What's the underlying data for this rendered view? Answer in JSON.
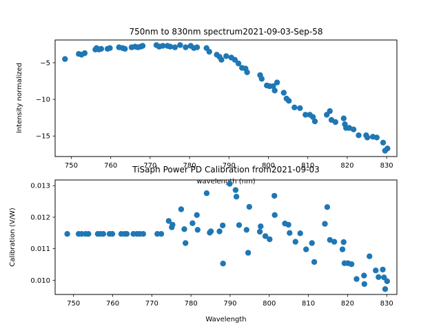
{
  "chart_data": [
    {
      "type": "scatter",
      "title": "750nm to 830nm spectrum2021-09-03-Sep-58",
      "xlabel": "wavelength (nm)",
      "ylabel": "Intensity normalized",
      "xlim": [
        745.9,
        832.6
      ],
      "ylim": [
        -17.8,
        -1.9
      ],
      "xticks": [
        750,
        760,
        770,
        780,
        790,
        800,
        810,
        820,
        830
      ],
      "yticks": [
        -5,
        -10,
        -15
      ],
      "grid": false,
      "marker_color": "#1f77b4",
      "points": [
        [
          748.4,
          -4.5
        ],
        [
          751.9,
          -3.8
        ],
        [
          752.6,
          -3.9
        ],
        [
          753.4,
          -3.7
        ],
        [
          756.1,
          -3.2
        ],
        [
          756.4,
          -3.0
        ],
        [
          757.0,
          -3.2
        ],
        [
          757.6,
          -3.1
        ],
        [
          759.2,
          -3.1
        ],
        [
          759.8,
          -3.0
        ],
        [
          762.1,
          -2.9
        ],
        [
          763.0,
          -3.0
        ],
        [
          763.6,
          -3.1
        ],
        [
          765.3,
          -2.9
        ],
        [
          766.2,
          -2.8
        ],
        [
          766.9,
          -2.9
        ],
        [
          767.6,
          -2.8
        ],
        [
          768.1,
          -2.7
        ],
        [
          771.6,
          -2.6
        ],
        [
          772.3,
          -2.8
        ],
        [
          773.2,
          -2.7
        ],
        [
          774.4,
          -2.7
        ],
        [
          775.1,
          -2.8
        ],
        [
          776.3,
          -2.9
        ],
        [
          777.6,
          -2.6
        ],
        [
          779.0,
          -2.9
        ],
        [
          780.3,
          -2.7
        ],
        [
          781.1,
          -3.0
        ],
        [
          781.9,
          -2.9
        ],
        [
          784.3,
          -3.0
        ],
        [
          785.0,
          -3.5
        ],
        [
          786.9,
          -3.9
        ],
        [
          787.6,
          -4.2
        ],
        [
          788.1,
          -4.6
        ],
        [
          789.3,
          -4.1
        ],
        [
          790.6,
          -4.3
        ],
        [
          791.5,
          -4.6
        ],
        [
          792.4,
          -5.1
        ],
        [
          793.3,
          -5.7
        ],
        [
          794.2,
          -5.8
        ],
        [
          794.6,
          -6.3
        ],
        [
          797.9,
          -6.7
        ],
        [
          798.3,
          -7.2
        ],
        [
          799.6,
          -8.1
        ],
        [
          800.3,
          -8.2
        ],
        [
          801.2,
          -8.2
        ],
        [
          801.6,
          -8.8
        ],
        [
          802.2,
          -7.7
        ],
        [
          803.9,
          -9.1
        ],
        [
          804.6,
          -9.9
        ],
        [
          805.2,
          -10.2
        ],
        [
          806.6,
          -11.1
        ],
        [
          808.0,
          -11.2
        ],
        [
          809.4,
          -12.1
        ],
        [
          810.5,
          -12.1
        ],
        [
          811.3,
          -12.4
        ],
        [
          811.8,
          -13.0
        ],
        [
          814.8,
          -12.1
        ],
        [
          815.6,
          -11.6
        ],
        [
          816.0,
          -12.8
        ],
        [
          817.0,
          -13.1
        ],
        [
          819.1,
          -12.6
        ],
        [
          819.4,
          -13.4
        ],
        [
          819.7,
          -13.9
        ],
        [
          820.5,
          -13.9
        ],
        [
          821.6,
          -14.1
        ],
        [
          822.9,
          -14.9
        ],
        [
          824.8,
          -14.9
        ],
        [
          825.1,
          -15.2
        ],
        [
          826.5,
          -15.1
        ],
        [
          827.5,
          -15.2
        ],
        [
          829.1,
          -15.9
        ],
        [
          829.6,
          -17.0
        ],
        [
          830.2,
          -16.7
        ]
      ]
    },
    {
      "type": "scatter",
      "title": "TiSaph Power PD Calibration from2021-09-03",
      "xlabel": "Wavelength",
      "ylabel": "Calibration (V/W)",
      "xlim": [
        745.3,
        832.6
      ],
      "ylim": [
        0.00955,
        0.01318
      ],
      "xticks": [
        750,
        760,
        770,
        780,
        790,
        800,
        810,
        820,
        830
      ],
      "yticks": [
        0.01,
        0.011,
        0.012,
        0.013
      ],
      "ytick_labels": [
        "0.010",
        "0.011",
        "0.012",
        "0.013"
      ],
      "grid": false,
      "marker_color": "#1f77b4",
      "points": [
        [
          748.4,
          0.01147
        ],
        [
          751.3,
          0.01147
        ],
        [
          752.1,
          0.01147
        ],
        [
          753.1,
          0.01147
        ],
        [
          753.8,
          0.01147
        ],
        [
          756.2,
          0.01147
        ],
        [
          756.9,
          0.01147
        ],
        [
          757.6,
          0.01147
        ],
        [
          759.2,
          0.01147
        ],
        [
          759.9,
          0.01147
        ],
        [
          762.2,
          0.01147
        ],
        [
          763.1,
          0.01147
        ],
        [
          763.6,
          0.01147
        ],
        [
          765.3,
          0.01147
        ],
        [
          766.2,
          0.01147
        ],
        [
          766.9,
          0.01147
        ],
        [
          767.8,
          0.01147
        ],
        [
          771.4,
          0.01147
        ],
        [
          772.4,
          0.01147
        ],
        [
          774.3,
          0.01188
        ],
        [
          775.1,
          0.01168
        ],
        [
          775.3,
          0.01176
        ],
        [
          777.5,
          0.01225
        ],
        [
          778.3,
          0.01162
        ],
        [
          778.6,
          0.01118
        ],
        [
          780.4,
          0.01181
        ],
        [
          781.5,
          0.01207
        ],
        [
          781.7,
          0.0116
        ],
        [
          784.0,
          0.01276
        ],
        [
          784.8,
          0.01151
        ],
        [
          785.1,
          0.01155
        ],
        [
          787.3,
          0.01155
        ],
        [
          788.1,
          0.01174
        ],
        [
          788.2,
          0.01053
        ],
        [
          789.9,
          0.01306
        ],
        [
          791.4,
          0.01286
        ],
        [
          791.6,
          0.01265
        ],
        [
          792.3,
          0.01175
        ],
        [
          794.2,
          0.0116
        ],
        [
          794.6,
          0.01087
        ],
        [
          794.9,
          0.01233
        ],
        [
          797.6,
          0.01154
        ],
        [
          797.8,
          0.01171
        ],
        [
          799.0,
          0.0114
        ],
        [
          800.1,
          0.0113
        ],
        [
          801.4,
          0.01207
        ],
        [
          801.3,
          0.01268
        ],
        [
          804.0,
          0.0118
        ],
        [
          804.9,
          0.01176
        ],
        [
          805.2,
          0.0115
        ],
        [
          806.7,
          0.01122
        ],
        [
          807.9,
          0.01149
        ],
        [
          809.4,
          0.01098
        ],
        [
          810.9,
          0.01118
        ],
        [
          811.5,
          0.01058
        ],
        [
          814.2,
          0.01179
        ],
        [
          814.8,
          0.01232
        ],
        [
          815.5,
          0.01128
        ],
        [
          816.6,
          0.01122
        ],
        [
          818.7,
          0.01098
        ],
        [
          819.0,
          0.01121
        ],
        [
          819.2,
          0.01054
        ],
        [
          820.1,
          0.01054
        ],
        [
          821.0,
          0.01051
        ],
        [
          822.3,
          0.01004
        ],
        [
          824.2,
          0.01015
        ],
        [
          824.3,
          0.00988
        ],
        [
          825.6,
          0.01076
        ],
        [
          827.2,
          0.01031
        ],
        [
          827.9,
          0.0101
        ],
        [
          829.0,
          0.01034
        ],
        [
          829.3,
          0.01009
        ],
        [
          829.6,
          0.00972
        ],
        [
          830.1,
          0.00997
        ]
      ]
    }
  ]
}
